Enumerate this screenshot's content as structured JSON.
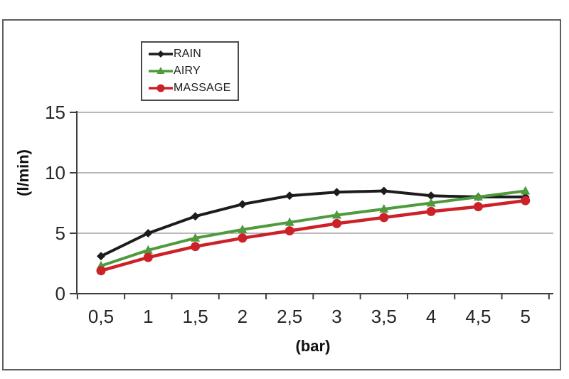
{
  "page": {
    "background": "#ffffff",
    "frame_border_color": "#5e5e5e"
  },
  "chart_data": {
    "type": "line",
    "title": "",
    "xlabel": "(bar)",
    "ylabel": "(l/min)",
    "categories": [
      "0,5",
      "1",
      "1,5",
      "2",
      "2,5",
      "3",
      "3,5",
      "4",
      "4,5",
      "5"
    ],
    "x_values": [
      0.5,
      1,
      1.5,
      2,
      2.5,
      3,
      3.5,
      4,
      4.5,
      5
    ],
    "y_ticks": [
      0,
      5,
      10,
      15
    ],
    "ylim": [
      0,
      15
    ],
    "grid": "horizontal",
    "legend_position": "top-left-inside",
    "axis_color": "#3f3f3f",
    "gridline_color": "#8f8f8f",
    "series": [
      {
        "name": "RAIN",
        "color": "#1c1c1c",
        "marker": "diamond",
        "values": [
          3.1,
          5.0,
          6.4,
          7.4,
          8.1,
          8.4,
          8.5,
          8.1,
          8.0,
          8.0
        ]
      },
      {
        "name": "AIRY",
        "color": "#4e9a3c",
        "marker": "triangle",
        "values": [
          2.3,
          3.6,
          4.6,
          5.3,
          5.9,
          6.5,
          7.0,
          7.5,
          8.0,
          8.5
        ]
      },
      {
        "name": "MASSAGE",
        "color": "#cc2128",
        "marker": "circle",
        "values": [
          1.9,
          3.0,
          3.9,
          4.6,
          5.2,
          5.8,
          6.3,
          6.8,
          7.2,
          7.7
        ]
      }
    ]
  }
}
